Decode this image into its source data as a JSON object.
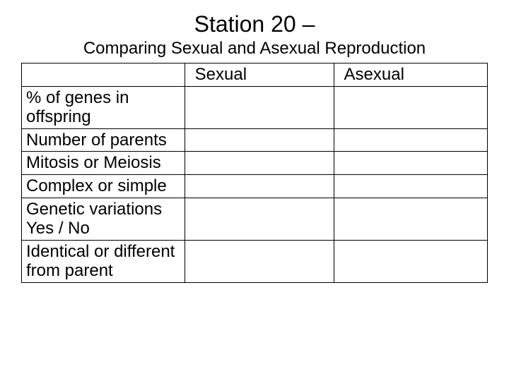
{
  "title": "Station 20 –",
  "subtitle": "Comparing Sexual and Asexual Reproduction",
  "table": {
    "columns": [
      "",
      "Sexual",
      "Asexual"
    ],
    "col_widths_pct": [
      35,
      32,
      33
    ],
    "header_fontsize": 24,
    "cell_fontsize": 24,
    "border_color": "#000000",
    "rows": [
      [
        "% of genes in offspring",
        "",
        ""
      ],
      [
        "Number of parents",
        "",
        ""
      ],
      [
        "Mitosis or Meiosis",
        "",
        ""
      ],
      [
        "Complex or simple",
        "",
        ""
      ],
      [
        "Genetic variations Yes / No",
        "",
        ""
      ],
      [
        "Identical or different from parent",
        "",
        ""
      ]
    ]
  },
  "background_color": "#ffffff",
  "text_color": "#000000",
  "title_fontsize": 32,
  "subtitle_fontsize": 24
}
